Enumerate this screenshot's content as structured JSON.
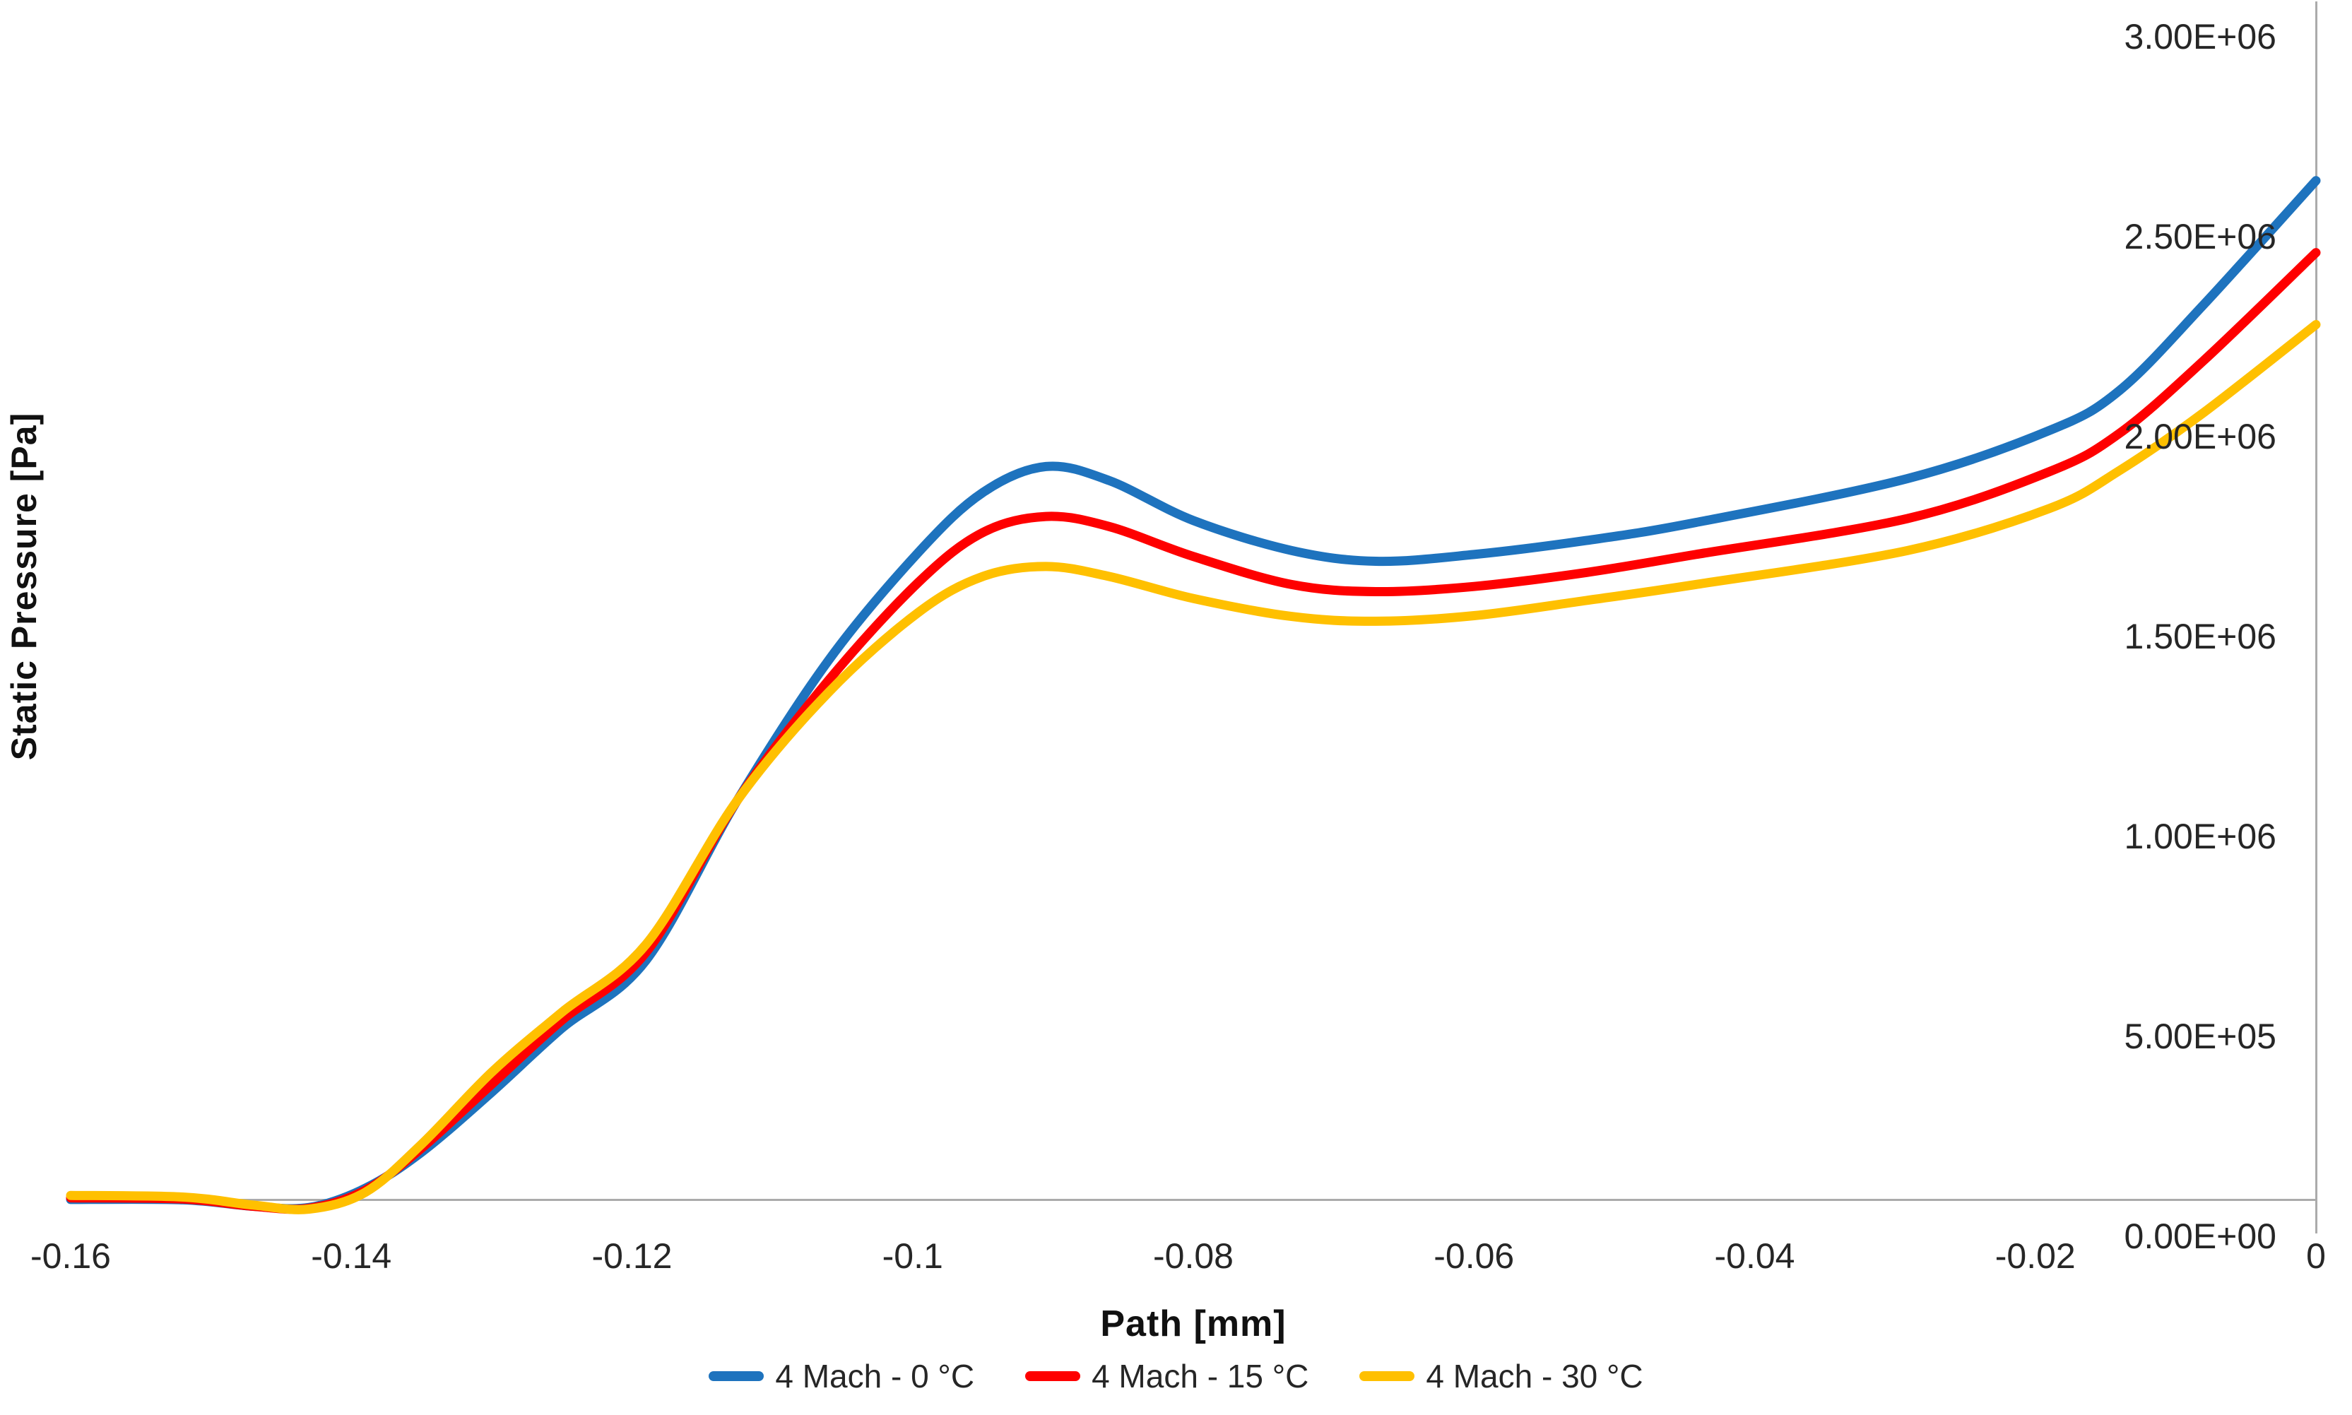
{
  "chart_data": {
    "type": "line",
    "title": "",
    "xlabel": "Path [mm]",
    "ylabel": "Static Pressure [Pa]",
    "xlim": [
      -0.16,
      0
    ],
    "ylim": [
      0,
      3000000
    ],
    "grid": false,
    "legend_position": "bottom",
    "x_ticks": [
      {
        "v": -0.16,
        "label": "-0.16"
      },
      {
        "v": -0.14,
        "label": "-0.14"
      },
      {
        "v": -0.12,
        "label": "-0.12"
      },
      {
        "v": -0.1,
        "label": "-0.1"
      },
      {
        "v": -0.08,
        "label": "-0.08"
      },
      {
        "v": -0.06,
        "label": "-0.06"
      },
      {
        "v": -0.04,
        "label": "-0.04"
      },
      {
        "v": -0.02,
        "label": "-0.02"
      },
      {
        "v": 0,
        "label": "0"
      }
    ],
    "y_ticks": [
      {
        "v": 0,
        "label": "0.00E+00"
      },
      {
        "v": 500000,
        "label": "5.00E+05"
      },
      {
        "v": 1000000,
        "label": "1.00E+06"
      },
      {
        "v": 1500000,
        "label": "1.50E+06"
      },
      {
        "v": 2000000,
        "label": "2.00E+06"
      },
      {
        "v": 2500000,
        "label": "2.50E+06"
      },
      {
        "v": 3000000,
        "label": "3.00E+06"
      }
    ],
    "x": [
      -0.16,
      -0.152,
      -0.147,
      -0.143,
      -0.139,
      -0.135,
      -0.13,
      -0.125,
      -0.119,
      -0.1125,
      -0.106,
      -0.0996,
      -0.095,
      -0.0905,
      -0.086,
      -0.08,
      -0.073,
      -0.067,
      -0.06,
      -0.052,
      -0.0442,
      -0.0291,
      -0.019,
      -0.014,
      -0.008,
      0
    ],
    "series": [
      {
        "name": "4 Mach - 0 °C",
        "color": "#1E73BE",
        "values": [
          2000,
          1000,
          -15000,
          -18000,
          30000,
          120000,
          270000,
          430000,
          600000,
          1000000,
          1350000,
          1620000,
          1770000,
          1835000,
          1800000,
          1700000,
          1625000,
          1598000,
          1615000,
          1650000,
          1695000,
          1805000,
          1925000,
          2025000,
          2240000,
          2550000
        ]
      },
      {
        "name": "4 Mach - 15 °C",
        "color": "#FE0000",
        "values": [
          6000,
          3000,
          -15000,
          -20000,
          25000,
          130000,
          290000,
          450000,
          620000,
          1000000,
          1300000,
          1545000,
          1670000,
          1710000,
          1685000,
          1610000,
          1540000,
          1522000,
          1535000,
          1570000,
          1615000,
          1705000,
          1822000,
          1918000,
          2100000,
          2370000
        ]
      },
      {
        "name": "4 Mach - 30 °C",
        "color": "#FFC000",
        "values": [
          12000,
          8000,
          -12000,
          -22000,
          20000,
          140000,
          320000,
          470000,
          640000,
          1000000,
          1270000,
          1470000,
          1560000,
          1585000,
          1560000,
          1505000,
          1460000,
          1448000,
          1462000,
          1500000,
          1540000,
          1625000,
          1730000,
          1825000,
          1970000,
          2190000
        ]
      }
    ],
    "axis_color": "#ABABAB",
    "tick_text_color": "#262626"
  }
}
